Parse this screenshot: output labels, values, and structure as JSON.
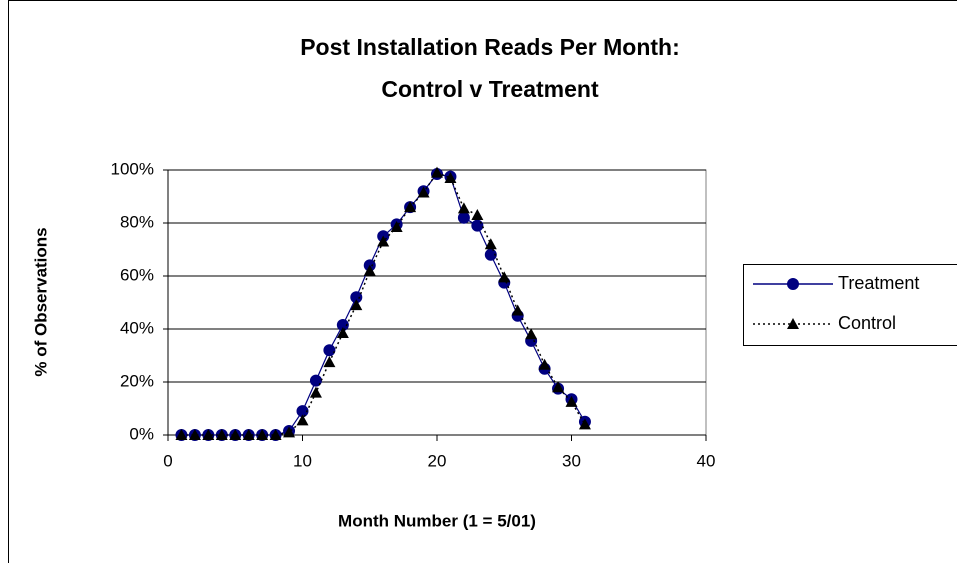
{
  "chart_data": {
    "type": "line",
    "title": [
      "Post Installation Reads Per Month:",
      "Control v Treatment"
    ],
    "x_label": "Month Number (1 = 5/01)",
    "y_label": "% of Observations",
    "x": [
      1,
      2,
      3,
      4,
      5,
      6,
      7,
      8,
      9,
      10,
      11,
      12,
      13,
      14,
      15,
      16,
      17,
      18,
      19,
      20,
      21,
      22,
      23,
      24,
      25,
      26,
      27,
      28,
      29,
      30,
      31
    ],
    "series": [
      {
        "name": "Treatment",
        "color": "#000080",
        "marker": "circle",
        "dash": "solid",
        "values": [
          0,
          0,
          0,
          0,
          0,
          0,
          0,
          0,
          1.5,
          9,
          20.5,
          32,
          41.5,
          52,
          64,
          75,
          79.5,
          86,
          92,
          98.5,
          97.5,
          82,
          79,
          68,
          57.5,
          45,
          35.5,
          25,
          17.5,
          13.5,
          5
        ]
      },
      {
        "name": "Control",
        "color": "#000000",
        "marker": "triangle",
        "dash": "dotted",
        "values": [
          0,
          0,
          0,
          0,
          0,
          0,
          0,
          0,
          1,
          5.5,
          16,
          27.5,
          38.5,
          49,
          62,
          73,
          78.5,
          86,
          91.5,
          99,
          97,
          85.5,
          83,
          72,
          59.5,
          47,
          38,
          26.5,
          18,
          12.5,
          4
        ]
      }
    ],
    "xlim": [
      0,
      40
    ],
    "xticks": [
      0,
      10,
      20,
      30,
      40
    ],
    "ylim": [
      0,
      100
    ],
    "yticks": [
      {
        "value": 0,
        "label": "0%"
      },
      {
        "value": 20,
        "label": "20%"
      },
      {
        "value": 40,
        "label": "40%"
      },
      {
        "value": 60,
        "label": "60%"
      },
      {
        "value": 80,
        "label": "80%"
      },
      {
        "value": 100,
        "label": "100%"
      }
    ],
    "grid": true,
    "legend": "right"
  }
}
